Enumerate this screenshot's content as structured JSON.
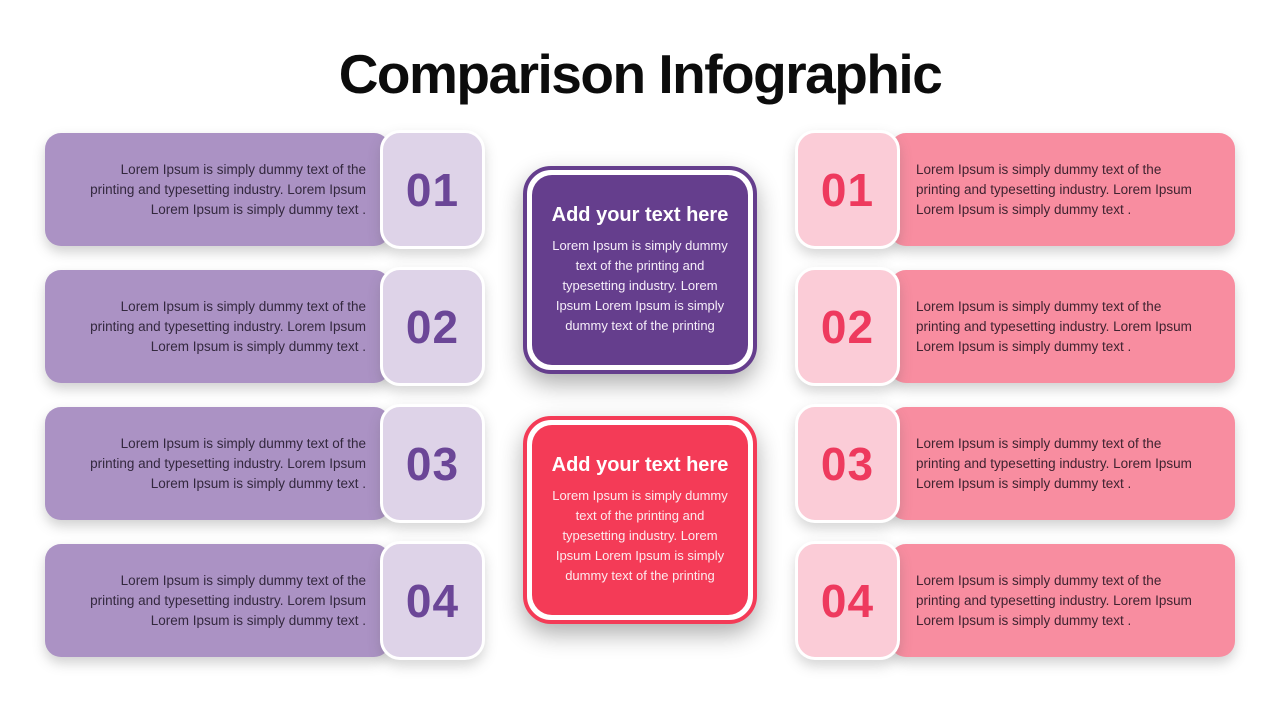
{
  "title": "Comparison Infographic",
  "palette": {
    "left_bar": "#ab92c4",
    "left_number_box": "#ded3e8",
    "left_number_text": "#6b4697",
    "right_bar": "#f88da0",
    "right_number_box": "#fbccd7",
    "right_number_text": "#ee3a5e",
    "center_purple": "#653e8d",
    "center_pink": "#f43b57",
    "title_color": "#0c0c0c",
    "background": "#ffffff"
  },
  "left_column": {
    "rows": [
      {
        "number": "01",
        "text": "Lorem Ipsum is simply dummy text of the printing and typesetting industry. Lorem Ipsum Lorem Ipsum is simply dummy text ."
      },
      {
        "number": "02",
        "text": "Lorem Ipsum is simply dummy text of the printing and typesetting industry. Lorem Ipsum Lorem Ipsum is simply dummy text ."
      },
      {
        "number": "03",
        "text": "Lorem Ipsum is simply dummy text of the printing and typesetting industry. Lorem Ipsum Lorem Ipsum is simply dummy text ."
      },
      {
        "number": "04",
        "text": "Lorem Ipsum is simply dummy text of the printing and typesetting industry. Lorem Ipsum Lorem Ipsum is simply dummy text ."
      }
    ]
  },
  "right_column": {
    "rows": [
      {
        "number": "01",
        "text": "Lorem Ipsum is simply dummy text of the printing and typesetting industry. Lorem Ipsum Lorem Ipsum is simply dummy text ."
      },
      {
        "number": "02",
        "text": "Lorem Ipsum is simply dummy text of the printing and typesetting industry. Lorem Ipsum Lorem Ipsum is simply dummy text ."
      },
      {
        "number": "03",
        "text": "Lorem Ipsum is simply dummy text of the printing and typesetting industry. Lorem Ipsum Lorem Ipsum is simply dummy text ."
      },
      {
        "number": "04",
        "text": "Lorem Ipsum is simply dummy text of the printing and typesetting industry. Lorem Ipsum Lorem Ipsum is simply dummy text ."
      }
    ]
  },
  "center": {
    "boxes": [
      {
        "title": "Add your text here",
        "body": "Lorem Ipsum is simply dummy text of the printing and typesetting industry. Lorem Ipsum Lorem Ipsum is simply dummy text of the printing",
        "color": "#653e8d"
      },
      {
        "title": "Add your text here",
        "body": "Lorem Ipsum is simply dummy text of the printing and typesetting industry. Lorem Ipsum Lorem Ipsum is simply dummy text of the printing",
        "color": "#f43b57"
      }
    ]
  }
}
